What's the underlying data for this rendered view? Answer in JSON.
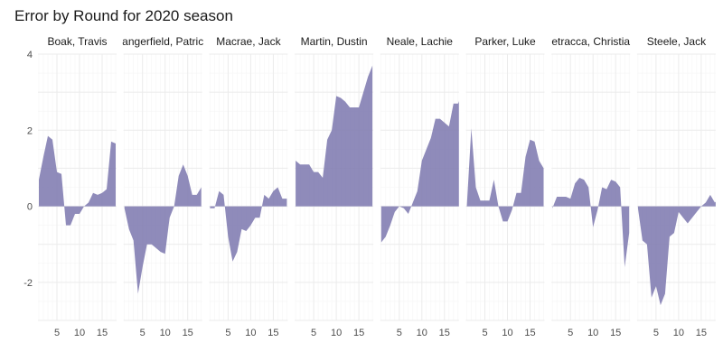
{
  "chart_data": {
    "type": "area",
    "title": "Error by Round for 2020 season",
    "xlabel": "",
    "ylabel": "",
    "xlim": [
      0.8,
      18.2
    ],
    "ylim": [
      -3.0,
      4.0
    ],
    "x_ticks": [
      5,
      10,
      15
    ],
    "y_ticks": [
      -2,
      0,
      2,
      4
    ],
    "grid": true,
    "facets": [
      {
        "label": "Boak, Travis",
        "points": [
          [
            1,
            0.7
          ],
          [
            2,
            1.3
          ],
          [
            3,
            1.85
          ],
          [
            4,
            1.75
          ],
          [
            5,
            0.9
          ],
          [
            6,
            0.85
          ],
          [
            7,
            -0.5
          ],
          [
            8,
            -0.5
          ],
          [
            9,
            -0.2
          ],
          [
            10,
            -0.2
          ],
          [
            11,
            0.0
          ],
          [
            12,
            0.1
          ],
          [
            13,
            0.35
          ],
          [
            14,
            0.3
          ],
          [
            15,
            0.35
          ],
          [
            16,
            0.45
          ],
          [
            17,
            1.7
          ],
          [
            18,
            1.65
          ]
        ]
      },
      {
        "label": "angerfield, Patric",
        "points": [
          [
            1,
            -0.05
          ],
          [
            2,
            -0.6
          ],
          [
            3,
            -0.9
          ],
          [
            4,
            -2.3
          ],
          [
            5,
            -1.6
          ],
          [
            6,
            -1.0
          ],
          [
            7,
            -1.0
          ],
          [
            8,
            -1.1
          ],
          [
            9,
            -1.2
          ],
          [
            10,
            -1.25
          ],
          [
            11,
            -0.3
          ],
          [
            12,
            0.0
          ],
          [
            13,
            0.8
          ],
          [
            14,
            1.1
          ],
          [
            15,
            0.8
          ],
          [
            16,
            0.3
          ],
          [
            17,
            0.3
          ],
          [
            18,
            0.5
          ]
        ]
      },
      {
        "label": "Macrae, Jack",
        "points": [
          [
            1,
            -0.05
          ],
          [
            2,
            -0.05
          ],
          [
            3,
            0.4
          ],
          [
            4,
            0.3
          ],
          [
            5,
            -0.8
          ],
          [
            6,
            -1.45
          ],
          [
            7,
            -1.2
          ],
          [
            8,
            -0.6
          ],
          [
            9,
            -0.65
          ],
          [
            10,
            -0.5
          ],
          [
            11,
            -0.3
          ],
          [
            12,
            -0.3
          ],
          [
            13,
            0.3
          ],
          [
            14,
            0.2
          ],
          [
            15,
            0.4
          ],
          [
            16,
            0.5
          ],
          [
            17,
            0.2
          ],
          [
            18,
            0.2
          ]
        ]
      },
      {
        "label": "Martin, Dustin",
        "points": [
          [
            1,
            1.2
          ],
          [
            2,
            1.1
          ],
          [
            3,
            1.1
          ],
          [
            4,
            1.1
          ],
          [
            5,
            0.9
          ],
          [
            6,
            0.9
          ],
          [
            7,
            0.75
          ],
          [
            8,
            1.75
          ],
          [
            9,
            2.0
          ],
          [
            10,
            2.9
          ],
          [
            11,
            2.85
          ],
          [
            12,
            2.75
          ],
          [
            13,
            2.6
          ],
          [
            14,
            2.6
          ],
          [
            15,
            2.6
          ],
          [
            16,
            3.0
          ],
          [
            17,
            3.4
          ],
          [
            18,
            3.7
          ]
        ]
      },
      {
        "label": "Neale, Lachie",
        "points": [
          [
            1,
            -0.95
          ],
          [
            2,
            -0.8
          ],
          [
            3,
            -0.5
          ],
          [
            4,
            -0.15
          ],
          [
            5,
            0.0
          ],
          [
            6,
            -0.05
          ],
          [
            7,
            -0.2
          ],
          [
            8,
            0.1
          ],
          [
            9,
            0.4
          ],
          [
            10,
            1.2
          ],
          [
            11,
            1.5
          ],
          [
            12,
            1.8
          ],
          [
            13,
            2.3
          ],
          [
            14,
            2.3
          ],
          [
            15,
            2.2
          ],
          [
            16,
            2.1
          ],
          [
            17,
            2.7
          ],
          [
            18,
            2.7
          ],
          [
            19,
            3.0
          ]
        ]
      },
      {
        "label": "Parker, Luke",
        "points": [
          [
            1,
            0.0
          ],
          [
            2,
            2.05
          ],
          [
            3,
            0.5
          ],
          [
            4,
            0.15
          ],
          [
            5,
            0.15
          ],
          [
            6,
            0.15
          ],
          [
            7,
            0.7
          ],
          [
            8,
            0.0
          ],
          [
            9,
            -0.4
          ],
          [
            10,
            -0.4
          ],
          [
            11,
            -0.1
          ],
          [
            12,
            0.35
          ],
          [
            13,
            0.35
          ],
          [
            14,
            1.3
          ],
          [
            15,
            1.75
          ],
          [
            16,
            1.7
          ],
          [
            17,
            1.2
          ],
          [
            18,
            1.0
          ]
        ]
      },
      {
        "label": "etracca, Christia",
        "points": [
          [
            1,
            -0.05
          ],
          [
            2,
            0.25
          ],
          [
            3,
            0.25
          ],
          [
            4,
            0.25
          ],
          [
            5,
            0.2
          ],
          [
            6,
            0.6
          ],
          [
            7,
            0.75
          ],
          [
            8,
            0.7
          ],
          [
            9,
            0.5
          ],
          [
            10,
            -0.55
          ],
          [
            11,
            -0.1
          ],
          [
            12,
            0.5
          ],
          [
            13,
            0.45
          ],
          [
            14,
            0.7
          ],
          [
            15,
            0.65
          ],
          [
            16,
            0.5
          ],
          [
            17,
            -1.6
          ],
          [
            18,
            -0.7
          ]
        ]
      },
      {
        "label": "Steele, Jack",
        "points": [
          [
            1,
            -0.05
          ],
          [
            2,
            -0.9
          ],
          [
            3,
            -1.0
          ],
          [
            4,
            -2.4
          ],
          [
            5,
            -2.1
          ],
          [
            6,
            -2.6
          ],
          [
            7,
            -2.3
          ],
          [
            8,
            -0.8
          ],
          [
            9,
            -0.7
          ],
          [
            10,
            -0.15
          ],
          [
            11,
            -0.3
          ],
          [
            12,
            -0.45
          ],
          [
            13,
            -0.3
          ],
          [
            14,
            -0.15
          ],
          [
            15,
            0.0
          ],
          [
            16,
            0.1
          ],
          [
            17,
            0.3
          ],
          [
            18,
            0.1
          ],
          [
            19,
            0.2
          ]
        ]
      }
    ]
  }
}
